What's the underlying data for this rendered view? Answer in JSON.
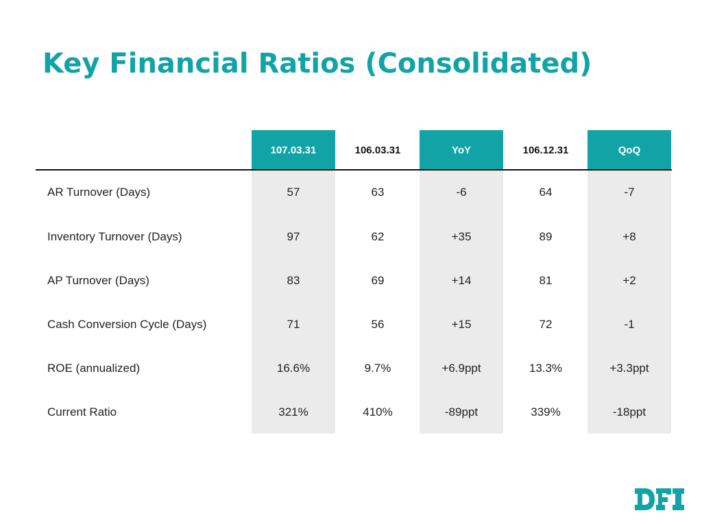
{
  "title": "Key Financial Ratios (Consolidated)",
  "colors": {
    "accent": "#12a3a6",
    "shaded": "#ebebeb"
  },
  "columns": [
    "107.03.31",
    "106.03.31",
    "YoY",
    "106.12.31",
    "QoQ"
  ],
  "rows": [
    {
      "label": "AR Turnover (Days)",
      "values": [
        "57",
        "63",
        "-6",
        "64",
        "-7"
      ]
    },
    {
      "label": "Inventory Turnover (Days)",
      "values": [
        "97",
        "62",
        "+35",
        "89",
        "+8"
      ]
    },
    {
      "label": "AP Turnover (Days)",
      "values": [
        "83",
        "69",
        "+14",
        "81",
        "+2"
      ]
    },
    {
      "label": "Cash Conversion Cycle (Days)",
      "values": [
        "71",
        "56",
        "+15",
        "72",
        "-1"
      ]
    },
    {
      "label": "ROE (annualized)",
      "values": [
        "16.6%",
        "9.7%",
        "+6.9ppt",
        "13.3%",
        "+3.3ppt"
      ]
    },
    {
      "label": "Current Ratio",
      "values": [
        "321%",
        "410%",
        "-89ppt",
        "339%",
        "-18ppt"
      ]
    }
  ],
  "logo": {
    "text": "DFI",
    "icon": "dfi-logo"
  }
}
